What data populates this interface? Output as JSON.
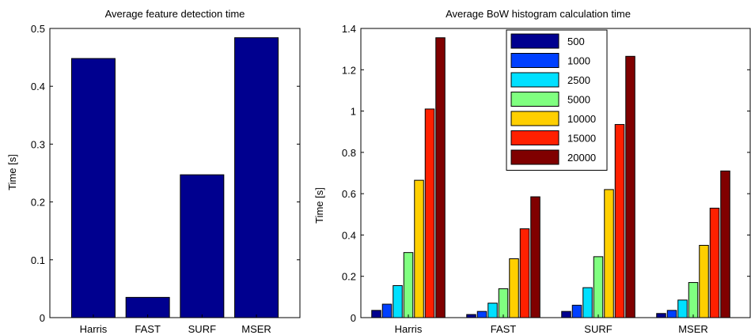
{
  "chart_data": [
    {
      "type": "bar",
      "title": "Average feature detection time",
      "xlabel": "",
      "ylabel": "Time [s]",
      "categories": [
        "Harris",
        "FAST",
        "SURF",
        "MSER"
      ],
      "values": [
        0.448,
        0.035,
        0.247,
        0.484
      ],
      "ylim": [
        0,
        0.5
      ],
      "yticks": [
        "0",
        "0.1",
        "0.2",
        "0.3",
        "0.4",
        "0.5"
      ],
      "bar_color": "#00008f",
      "grid": false
    },
    {
      "type": "bar",
      "title": "Average BoW histogram calculation time",
      "xlabel": "",
      "ylabel": "Time [s]",
      "categories": [
        "Harris",
        "FAST",
        "SURF",
        "MSER"
      ],
      "ylim": [
        0,
        1.4
      ],
      "yticks": [
        "0",
        "0.2",
        "0.4",
        "0.6",
        "0.8",
        "1",
        "1.2",
        "1.4"
      ],
      "legend_position": "top-center",
      "grid": false,
      "series": [
        {
          "name": "500",
          "color": "#00008f",
          "values": [
            0.035,
            0.015,
            0.03,
            0.02
          ]
        },
        {
          "name": "1000",
          "color": "#0040ff",
          "values": [
            0.065,
            0.03,
            0.06,
            0.035
          ]
        },
        {
          "name": "2500",
          "color": "#00e0ff",
          "values": [
            0.155,
            0.07,
            0.145,
            0.085
          ]
        },
        {
          "name": "5000",
          "color": "#80ff80",
          "values": [
            0.315,
            0.14,
            0.295,
            0.17
          ]
        },
        {
          "name": "10000",
          "color": "#ffcf00",
          "values": [
            0.665,
            0.285,
            0.62,
            0.35
          ]
        },
        {
          "name": "15000",
          "color": "#ff2000",
          "values": [
            1.01,
            0.43,
            0.935,
            0.53
          ]
        },
        {
          "name": "20000",
          "color": "#800000",
          "values": [
            1.355,
            0.585,
            1.265,
            0.71
          ]
        }
      ]
    }
  ]
}
